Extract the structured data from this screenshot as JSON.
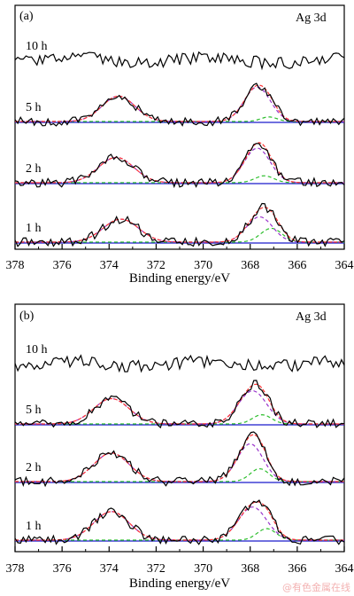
{
  "watermark": "@有色金属在线",
  "chart_data": [
    {
      "type": "line",
      "panel_label": "(a)",
      "element_label": "Ag 3d",
      "xlabel": "Binding energy/eV",
      "xlim": [
        378,
        364
      ],
      "x_ticks": [
        378,
        376,
        374,
        372,
        370,
        368,
        366,
        364
      ],
      "grid": false,
      "series": [
        {
          "name": "10 h",
          "peaks": []
        },
        {
          "name": "5 h",
          "peaks": [
            {
              "center": 373.6,
              "height": 0.55,
              "width": 0.7
            },
            {
              "center": 367.7,
              "height": 0.75,
              "width": 0.55
            },
            {
              "center": 367.2,
              "height": 0.1,
              "width": 0.35
            }
          ]
        },
        {
          "name": "2 h",
          "peaks": [
            {
              "center": 373.7,
              "height": 0.55,
              "width": 0.75
            },
            {
              "center": 367.7,
              "height": 0.75,
              "width": 0.55
            },
            {
              "center": 367.4,
              "height": 0.15,
              "width": 0.4
            }
          ]
        },
        {
          "name": "1 h",
          "peaks": [
            {
              "center": 373.5,
              "height": 0.5,
              "width": 0.75
            },
            {
              "center": 367.6,
              "height": 0.55,
              "width": 0.55
            },
            {
              "center": 367.1,
              "height": 0.3,
              "width": 0.45
            }
          ]
        }
      ]
    },
    {
      "type": "line",
      "panel_label": "(b)",
      "element_label": "Ag 3d",
      "xlabel": "Binding energy/eV",
      "xlim": [
        378,
        364
      ],
      "x_ticks": [
        378,
        376,
        374,
        372,
        370,
        368,
        366,
        364
      ],
      "grid": false,
      "series": [
        {
          "name": "10 h",
          "peaks": []
        },
        {
          "name": "5 h",
          "peaks": [
            {
              "center": 373.9,
              "height": 0.55,
              "width": 0.75
            },
            {
              "center": 367.9,
              "height": 0.72,
              "width": 0.6
            },
            {
              "center": 367.5,
              "height": 0.2,
              "width": 0.4
            }
          ]
        },
        {
          "name": "2 h",
          "peaks": [
            {
              "center": 373.9,
              "height": 0.62,
              "width": 0.75
            },
            {
              "center": 368.0,
              "height": 0.82,
              "width": 0.55
            },
            {
              "center": 367.6,
              "height": 0.28,
              "width": 0.4
            }
          ]
        },
        {
          "name": "1 h",
          "peaks": [
            {
              "center": 373.9,
              "height": 0.62,
              "width": 0.75
            },
            {
              "center": 367.9,
              "height": 0.72,
              "width": 0.6
            },
            {
              "center": 367.3,
              "height": 0.25,
              "width": 0.4
            }
          ]
        }
      ]
    }
  ],
  "colors": {
    "raw": "#000000",
    "fit_envelope": "#ff3333",
    "fit_dash": "#e87a5a",
    "component_main": "#9933cc",
    "component_minor": "#2fbf2f",
    "baseline": "#1a1acc",
    "frame": "#000000"
  }
}
